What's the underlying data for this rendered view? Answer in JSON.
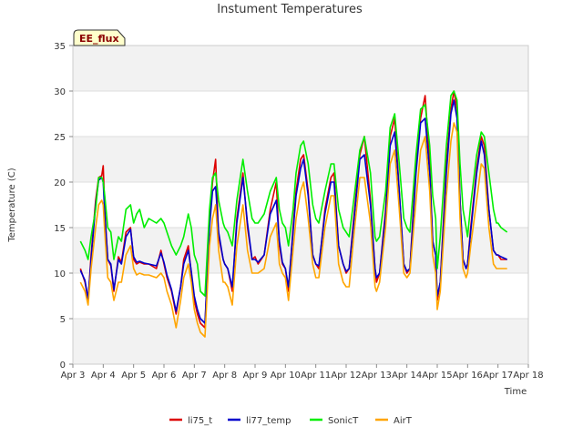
{
  "chart_data": {
    "type": "line",
    "title": "Instument Temperatures",
    "xlabel": "Time",
    "ylabel": "Temperature (C)",
    "badge": "EE_flux",
    "ylim": [
      0,
      35
    ],
    "yticks": [
      0,
      5,
      10,
      15,
      20,
      25,
      30,
      35
    ],
    "xlim": [
      3,
      18
    ],
    "xticks": [
      {
        "value": 3,
        "label": "Apr 3"
      },
      {
        "value": 4,
        "label": "Apr 4"
      },
      {
        "value": 5,
        "label": "Apr 5"
      },
      {
        "value": 6,
        "label": "Apr 6"
      },
      {
        "value": 7,
        "label": "Apr 7"
      },
      {
        "value": 8,
        "label": "Apr 8"
      },
      {
        "value": 9,
        "label": "Apr 9"
      },
      {
        "value": 10,
        "label": "Apr 10"
      },
      {
        "value": 11,
        "label": "Apr 11"
      },
      {
        "value": 12,
        "label": "Apr 12"
      },
      {
        "value": 13,
        "label": "Apr 13"
      },
      {
        "value": 14,
        "label": "Apr 14"
      },
      {
        "value": 15,
        "label": "Apr 15"
      },
      {
        "value": 16,
        "label": "Apr 16"
      },
      {
        "value": 17,
        "label": "Apr 17"
      },
      {
        "value": 18,
        "label": "Apr 18"
      }
    ],
    "grid": "horizontal bands",
    "legend_position": "bottom",
    "series": [
      {
        "name": "li75_t",
        "color": "#dd0000",
        "x": [
          3.25,
          3.4,
          3.5,
          3.6,
          3.75,
          3.85,
          3.95,
          4.0,
          4.05,
          4.15,
          4.25,
          4.35,
          4.5,
          4.6,
          4.75,
          4.9,
          5.0,
          5.1,
          5.2,
          5.35,
          5.5,
          5.75,
          5.9,
          6.0,
          6.1,
          6.25,
          6.4,
          6.55,
          6.65,
          6.8,
          6.9,
          7.0,
          7.1,
          7.2,
          7.35,
          7.5,
          7.6,
          7.7,
          7.8,
          7.95,
          8.0,
          8.1,
          8.25,
          8.4,
          8.6,
          8.75,
          8.9,
          9.0,
          9.1,
          9.3,
          9.5,
          9.7,
          9.8,
          9.9,
          10.0,
          10.1,
          10.25,
          10.35,
          10.5,
          10.6,
          10.75,
          10.9,
          11.0,
          11.1,
          11.3,
          11.5,
          11.6,
          11.75,
          11.9,
          12.0,
          12.1,
          12.25,
          12.45,
          12.6,
          12.8,
          12.95,
          13.0,
          13.1,
          13.3,
          13.45,
          13.6,
          13.75,
          13.9,
          14.0,
          14.1,
          14.3,
          14.45,
          14.6,
          14.75,
          14.85,
          14.95,
          15.0,
          15.1,
          15.3,
          15.45,
          15.55,
          15.65,
          15.75,
          15.85,
          15.95,
          16.0,
          16.1,
          16.3,
          16.45,
          16.55,
          16.7,
          16.85,
          16.95,
          17.0,
          17.1,
          17.3
        ],
        "y": [
          10.5,
          9.0,
          7.0,
          12.0,
          18.0,
          20.5,
          20.7,
          21.8,
          17.0,
          11.5,
          10.8,
          8.0,
          11.8,
          11.2,
          14.5,
          15.0,
          11.5,
          11.0,
          11.2,
          11.0,
          11.0,
          10.5,
          12.5,
          11.0,
          9.5,
          8.0,
          5.5,
          8.5,
          11.5,
          13.0,
          10.0,
          7.0,
          5.5,
          4.5,
          4.0,
          16.0,
          20.0,
          22.5,
          14.0,
          11.5,
          11.0,
          10.5,
          8.0,
          16.0,
          21.0,
          15.0,
          11.5,
          11.8,
          11.0,
          12.0,
          17.0,
          20.0,
          13.0,
          11.0,
          10.5,
          8.0,
          15.0,
          19.0,
          22.5,
          23.0,
          19.0,
          12.0,
          11.0,
          10.5,
          17.0,
          20.5,
          21.0,
          13.0,
          11.0,
          10.0,
          10.5,
          16.0,
          23.0,
          25.0,
          18.0,
          10.5,
          9.0,
          10.0,
          17.0,
          25.0,
          27.0,
          19.0,
          11.0,
          10.0,
          10.5,
          22.0,
          27.0,
          29.5,
          22.0,
          13.5,
          12.0,
          7.0,
          9.0,
          22.0,
          28.0,
          30.0,
          28.0,
          18.0,
          11.5,
          10.5,
          11.0,
          15.0,
          21.5,
          25.0,
          24.0,
          17.0,
          12.5,
          12.0,
          12.0,
          11.5,
          11.5
        ]
      },
      {
        "name": "li77_temp",
        "color": "#0000cc",
        "x": [
          3.25,
          3.4,
          3.5,
          3.6,
          3.75,
          3.85,
          3.95,
          4.0,
          4.05,
          4.15,
          4.25,
          4.35,
          4.5,
          4.6,
          4.75,
          4.9,
          5.0,
          5.1,
          5.2,
          5.35,
          5.5,
          5.75,
          5.9,
          6.0,
          6.1,
          6.25,
          6.4,
          6.55,
          6.65,
          6.8,
          6.9,
          7.0,
          7.1,
          7.2,
          7.35,
          7.5,
          7.6,
          7.7,
          7.8,
          7.95,
          8.0,
          8.1,
          8.25,
          8.4,
          8.6,
          8.75,
          8.9,
          9.0,
          9.1,
          9.3,
          9.5,
          9.7,
          9.8,
          9.9,
          10.0,
          10.1,
          10.25,
          10.35,
          10.5,
          10.6,
          10.75,
          10.9,
          11.0,
          11.1,
          11.3,
          11.5,
          11.6,
          11.75,
          11.9,
          12.0,
          12.1,
          12.25,
          12.45,
          12.6,
          12.8,
          12.95,
          13.0,
          13.1,
          13.3,
          13.45,
          13.6,
          13.75,
          13.9,
          14.0,
          14.1,
          14.3,
          14.45,
          14.6,
          14.75,
          14.85,
          14.95,
          15.0,
          15.1,
          15.3,
          15.45,
          15.55,
          15.65,
          15.75,
          15.85,
          15.95,
          16.0,
          16.1,
          16.3,
          16.45,
          16.55,
          16.7,
          16.85,
          16.95,
          17.0,
          17.1,
          17.3
        ],
        "y": [
          10.3,
          9.2,
          7.2,
          11.5,
          17.5,
          20.2,
          20.5,
          20.0,
          16.5,
          11.5,
          11.0,
          8.2,
          11.5,
          11.0,
          14.0,
          14.8,
          11.8,
          11.2,
          11.3,
          11.1,
          11.0,
          10.8,
          12.2,
          11.2,
          9.8,
          8.2,
          5.8,
          8.5,
          11.0,
          12.5,
          10.2,
          7.5,
          6.0,
          5.0,
          4.5,
          15.0,
          19.0,
          19.5,
          14.5,
          11.5,
          11.0,
          10.5,
          8.5,
          15.5,
          20.5,
          15.5,
          11.5,
          11.5,
          11.2,
          12.0,
          16.5,
          18.0,
          13.5,
          11.2,
          10.5,
          8.5,
          14.5,
          18.5,
          21.5,
          22.5,
          18.5,
          12.0,
          11.0,
          10.8,
          16.5,
          20.0,
          20.0,
          13.0,
          11.0,
          10.2,
          10.5,
          15.5,
          22.5,
          23.0,
          17.5,
          10.5,
          9.5,
          10.0,
          16.5,
          24.0,
          25.5,
          19.0,
          11.0,
          10.2,
          10.5,
          21.0,
          26.5,
          27.0,
          21.0,
          13.5,
          12.0,
          7.5,
          9.0,
          21.0,
          27.5,
          29.0,
          27.0,
          18.0,
          11.5,
          10.5,
          11.0,
          14.5,
          21.0,
          24.5,
          23.0,
          17.0,
          12.5,
          12.0,
          12.0,
          11.8,
          11.5
        ]
      },
      {
        "name": "SonicT",
        "color": "#00ee00",
        "x": [
          3.25,
          3.4,
          3.5,
          3.6,
          3.75,
          3.85,
          3.95,
          4.0,
          4.05,
          4.15,
          4.25,
          4.35,
          4.5,
          4.6,
          4.75,
          4.9,
          5.0,
          5.1,
          5.2,
          5.35,
          5.5,
          5.75,
          5.9,
          6.0,
          6.1,
          6.25,
          6.4,
          6.55,
          6.65,
          6.8,
          6.9,
          7.0,
          7.1,
          7.2,
          7.35,
          7.5,
          7.6,
          7.7,
          7.8,
          7.95,
          8.0,
          8.1,
          8.25,
          8.4,
          8.6,
          8.75,
          8.9,
          9.0,
          9.1,
          9.3,
          9.5,
          9.7,
          9.8,
          9.9,
          10.0,
          10.1,
          10.25,
          10.35,
          10.5,
          10.6,
          10.75,
          10.9,
          11.0,
          11.1,
          11.3,
          11.5,
          11.6,
          11.75,
          11.9,
          12.0,
          12.1,
          12.25,
          12.45,
          12.6,
          12.8,
          12.95,
          13.0,
          13.1,
          13.3,
          13.45,
          13.6,
          13.75,
          13.9,
          14.0,
          14.1,
          14.3,
          14.45,
          14.6,
          14.75,
          14.85,
          14.95,
          15.0,
          15.1,
          15.3,
          15.45,
          15.55,
          15.65,
          15.75,
          15.85,
          15.95,
          16.0,
          16.1,
          16.3,
          16.45,
          16.55,
          16.7,
          16.85,
          16.95,
          17.0,
          17.1,
          17.3
        ],
        "y": [
          13.5,
          12.5,
          11.5,
          14.0,
          17.0,
          20.5,
          20.5,
          20.0,
          18.5,
          15.0,
          14.5,
          11.5,
          14.0,
          13.5,
          17.0,
          17.5,
          15.5,
          16.5,
          17.0,
          15.0,
          16.0,
          15.5,
          16.0,
          15.5,
          14.5,
          13.0,
          12.0,
          13.0,
          14.0,
          16.5,
          15.0,
          12.0,
          11.0,
          8.0,
          7.5,
          17.0,
          20.5,
          21.0,
          18.0,
          15.5,
          15.0,
          14.5,
          13.0,
          18.0,
          22.5,
          19.0,
          16.0,
          15.5,
          15.5,
          16.5,
          19.0,
          20.5,
          17.0,
          15.5,
          15.0,
          13.0,
          17.0,
          21.0,
          24.0,
          24.5,
          22.0,
          17.5,
          16.0,
          15.5,
          19.0,
          22.0,
          22.0,
          17.0,
          15.0,
          14.5,
          14.0,
          18.0,
          23.5,
          25.0,
          21.0,
          14.0,
          13.5,
          14.0,
          19.0,
          26.0,
          27.5,
          22.0,
          16.0,
          15.0,
          14.5,
          23.0,
          28.0,
          28.5,
          24.0,
          18.5,
          16.0,
          10.5,
          14.0,
          24.0,
          29.5,
          30.0,
          29.0,
          22.0,
          17.0,
          15.0,
          14.0,
          17.5,
          23.0,
          25.5,
          25.0,
          21.0,
          17.0,
          15.5,
          15.5,
          15.0,
          14.5
        ]
      },
      {
        "name": "AirT",
        "color": "#ffa500",
        "x": [
          3.25,
          3.4,
          3.5,
          3.6,
          3.75,
          3.85,
          3.95,
          4.0,
          4.05,
          4.15,
          4.25,
          4.35,
          4.5,
          4.6,
          4.75,
          4.9,
          5.0,
          5.1,
          5.2,
          5.35,
          5.5,
          5.75,
          5.9,
          6.0,
          6.1,
          6.25,
          6.4,
          6.55,
          6.65,
          6.8,
          6.9,
          7.0,
          7.1,
          7.2,
          7.35,
          7.5,
          7.6,
          7.7,
          7.8,
          7.95,
          8.0,
          8.1,
          8.25,
          8.4,
          8.6,
          8.75,
          8.9,
          9.0,
          9.1,
          9.3,
          9.5,
          9.7,
          9.8,
          9.9,
          10.0,
          10.1,
          10.25,
          10.35,
          10.5,
          10.6,
          10.75,
          10.9,
          11.0,
          11.1,
          11.3,
          11.5,
          11.6,
          11.75,
          11.9,
          12.0,
          12.1,
          12.25,
          12.45,
          12.6,
          12.8,
          12.95,
          13.0,
          13.1,
          13.3,
          13.45,
          13.6,
          13.75,
          13.9,
          14.0,
          14.1,
          14.3,
          14.45,
          14.6,
          14.75,
          14.85,
          14.95,
          15.0,
          15.1,
          15.3,
          15.45,
          15.55,
          15.65,
          15.75,
          15.85,
          15.95,
          16.0,
          16.1,
          16.3,
          16.45,
          16.55,
          16.7,
          16.85,
          16.95,
          17.0,
          17.1,
          17.3
        ],
        "y": [
          9.0,
          8.0,
          6.5,
          10.5,
          15.0,
          17.5,
          18.0,
          17.5,
          14.5,
          9.5,
          9.0,
          7.0,
          9.0,
          9.0,
          12.0,
          13.0,
          10.5,
          9.8,
          10.0,
          9.8,
          9.8,
          9.5,
          10.0,
          9.5,
          8.0,
          6.5,
          4.0,
          7.0,
          9.5,
          11.0,
          9.0,
          6.0,
          4.5,
          3.5,
          3.0,
          13.0,
          16.0,
          17.5,
          12.5,
          9.0,
          9.0,
          8.5,
          6.5,
          13.0,
          17.5,
          12.5,
          10.0,
          10.0,
          10.0,
          10.5,
          14.0,
          15.5,
          11.0,
          10.0,
          9.5,
          7.0,
          12.5,
          16.0,
          19.0,
          20.0,
          16.0,
          11.0,
          9.5,
          9.5,
          15.0,
          18.5,
          18.5,
          11.0,
          9.0,
          8.5,
          8.5,
          14.0,
          20.5,
          20.5,
          15.5,
          8.5,
          8.0,
          9.0,
          15.0,
          22.0,
          23.5,
          17.0,
          10.0,
          9.5,
          10.0,
          18.0,
          23.5,
          25.0,
          19.0,
          12.0,
          10.0,
          6.0,
          8.0,
          18.5,
          24.5,
          26.5,
          25.5,
          16.0,
          10.5,
          9.5,
          10.0,
          13.0,
          18.0,
          22.0,
          21.5,
          15.0,
          11.0,
          10.5,
          10.5,
          10.5,
          10.5
        ]
      }
    ]
  }
}
